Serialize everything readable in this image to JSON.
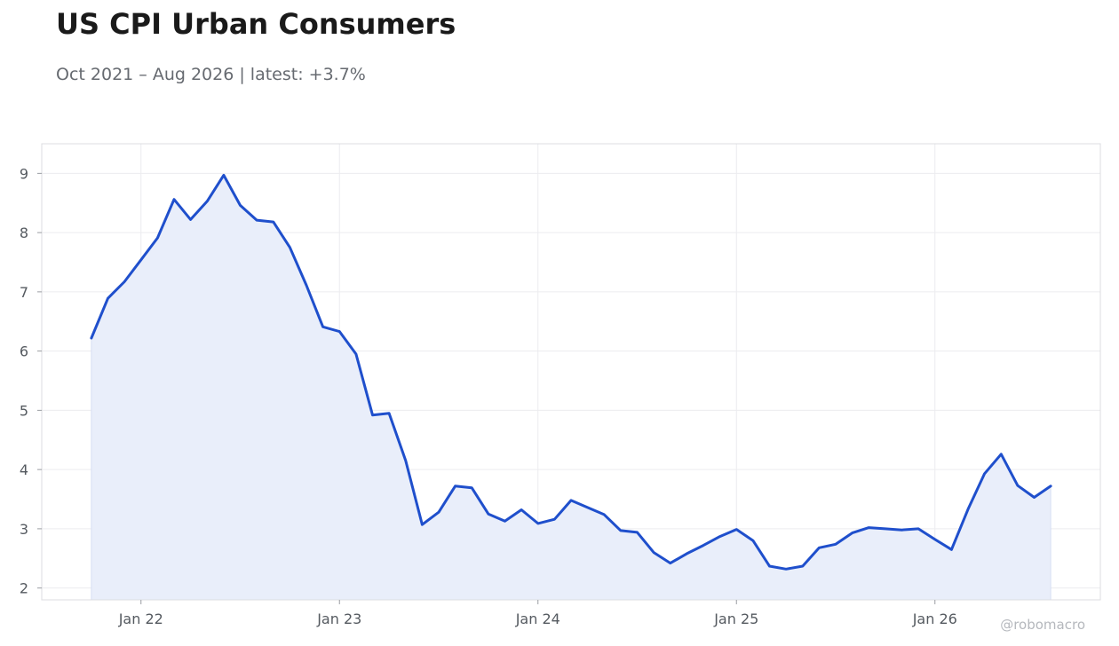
{
  "header": {
    "title": "US CPI Urban Consumers",
    "subtitle": "Oct 2021 – Aug 2026 | latest: +3.7%"
  },
  "watermark": "@robomacro",
  "colors": {
    "line": "#1f4fcc",
    "fill": "#e9eefa",
    "grid": "#ececef",
    "frame": "#dcdde0",
    "tick_text": "#555a60"
  },
  "chart_data": {
    "type": "area",
    "title": "US CPI Urban Consumers",
    "subtitle": "Oct 2021 – Aug 2026 | latest: +3.7%",
    "xlabel": "",
    "ylabel": "",
    "grid": true,
    "legend": "none",
    "ylim": [
      1.8,
      9.5
    ],
    "xlim": [
      "2021-07",
      "2026-11"
    ],
    "y_ticks": [
      2,
      3,
      4,
      5,
      6,
      7,
      8,
      9
    ],
    "x_ticks": [
      {
        "date": "2022-01",
        "label": "Jan 22"
      },
      {
        "date": "2023-01",
        "label": "Jan 23"
      },
      {
        "date": "2024-01",
        "label": "Jan 24"
      },
      {
        "date": "2025-01",
        "label": "Jan 25"
      },
      {
        "date": "2026-01",
        "label": "Jan 26"
      }
    ],
    "series": [
      {
        "x": [
          "2021-10",
          "2021-11",
          "2021-12",
          "2022-01",
          "2022-02",
          "2022-03",
          "2022-04",
          "2022-05",
          "2022-06",
          "2022-07",
          "2022-08",
          "2022-09",
          "2022-10",
          "2022-11",
          "2022-12",
          "2023-01",
          "2023-02",
          "2023-03",
          "2023-04",
          "2023-05",
          "2023-06",
          "2023-07",
          "2023-08",
          "2023-09",
          "2023-10",
          "2023-11",
          "2023-12",
          "2024-01",
          "2024-02",
          "2024-03",
          "2024-04",
          "2024-05",
          "2024-06",
          "2024-07",
          "2024-08",
          "2024-09",
          "2024-10",
          "2024-11",
          "2024-12",
          "2025-01",
          "2025-02",
          "2025-03",
          "2025-04",
          "2025-05",
          "2025-06",
          "2025-07",
          "2025-08",
          "2025-09",
          "2025-10",
          "2025-11",
          "2025-12",
          "2026-01",
          "2026-02",
          "2026-03",
          "2026-04",
          "2026-05",
          "2026-06",
          "2026-07",
          "2026-08"
        ],
        "values": [
          6.22,
          6.89,
          7.17,
          7.54,
          7.91,
          8.56,
          8.22,
          8.53,
          8.97,
          8.46,
          8.21,
          8.18,
          7.75,
          7.11,
          6.41,
          6.33,
          5.95,
          4.92,
          4.95,
          4.15,
          3.07,
          3.28,
          3.72,
          3.69,
          3.25,
          3.13,
          3.32,
          3.09,
          3.16,
          3.48,
          3.36,
          3.24,
          2.97,
          2.94,
          2.6,
          2.42,
          2.58,
          2.72,
          2.87,
          2.99,
          2.8,
          2.37,
          2.32,
          2.37,
          2.68,
          2.74,
          2.93,
          3.02,
          3.0,
          2.98,
          3.0,
          2.82,
          2.65,
          3.33,
          3.93,
          4.26,
          3.73,
          3.53,
          3.72
        ]
      }
    ]
  }
}
